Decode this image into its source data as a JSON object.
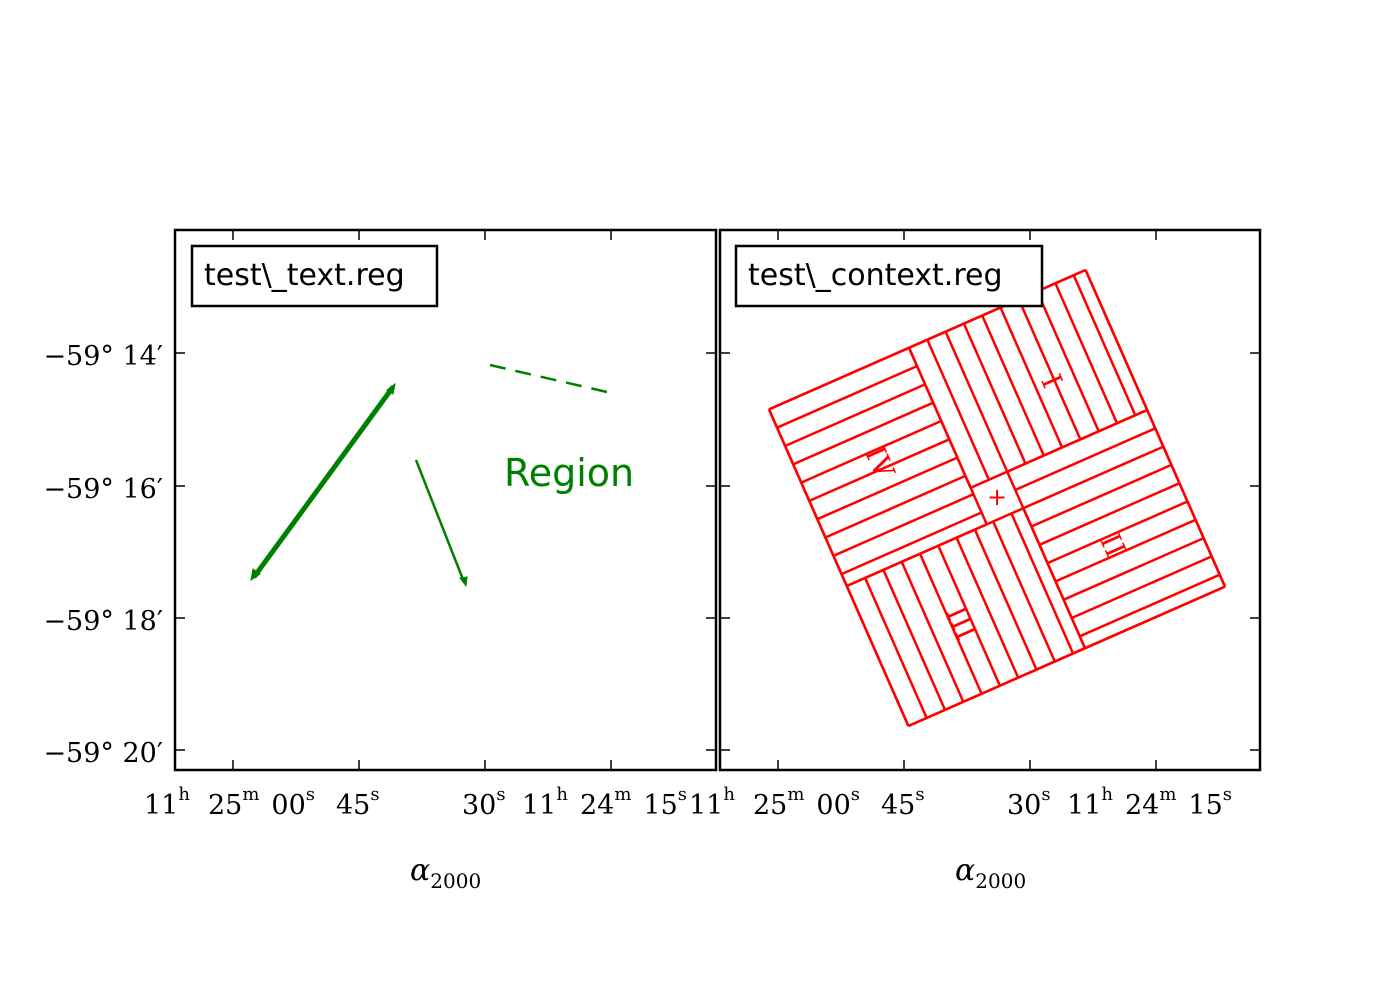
{
  "figure": {
    "colors": {
      "text_region": "#008000",
      "context_region": "#ff0000",
      "frame": "#000000"
    }
  },
  "chart_data": [
    {
      "type": "sky-region-plot",
      "panel_label": "test\\_text.reg",
      "xlabel": {
        "base": "α",
        "sub": "2000"
      },
      "x_ticks": [
        {
          "main": "11",
          "sup": "h",
          "main2": "25",
          "sup2": "m",
          "main3": "00",
          "sup3": "s"
        },
        {
          "main": "45",
          "sup": "s"
        },
        {
          "main": "30",
          "sup": "s"
        },
        {
          "main": "11",
          "sup": "h",
          "main2": "24",
          "sup2": "m",
          "main3": "15",
          "sup3": "s"
        }
      ],
      "y_ticks": [
        "−59°  14′",
        "−59°  16′",
        "−59°  18′",
        "−59°  20′"
      ],
      "annotations": [
        {
          "kind": "text",
          "text": "Region",
          "color": "#008000"
        },
        {
          "kind": "thick-line-bidirectional-arrow",
          "color": "#008000"
        },
        {
          "kind": "thin-line-arrow",
          "color": "#008000"
        },
        {
          "kind": "dashed-line",
          "color": "#008000"
        }
      ]
    },
    {
      "type": "sky-region-plot",
      "panel_label": "test\\_context.reg",
      "xlabel": {
        "base": "α",
        "sub": "2000"
      },
      "x_ticks": [
        {
          "main": "11",
          "sup": "h",
          "main2": "25",
          "sup2": "m",
          "main3": "00",
          "sup3": "s"
        },
        {
          "main": "45",
          "sup": "s"
        },
        {
          "main": "30",
          "sup": "s"
        },
        {
          "main": "11",
          "sup": "h",
          "main2": "24",
          "sup2": "m",
          "main3": "15",
          "sup3": "s"
        }
      ],
      "quadrants": [
        {
          "label": "I",
          "color": "#ff0000",
          "hatch": "parallel"
        },
        {
          "label": "II",
          "color": "#ff0000",
          "hatch": "parallel"
        },
        {
          "label": "III",
          "color": "#ff0000",
          "hatch": "parallel"
        },
        {
          "label": "IV",
          "color": "#ff0000",
          "hatch": "parallel"
        }
      ],
      "center_marker": "+"
    }
  ]
}
